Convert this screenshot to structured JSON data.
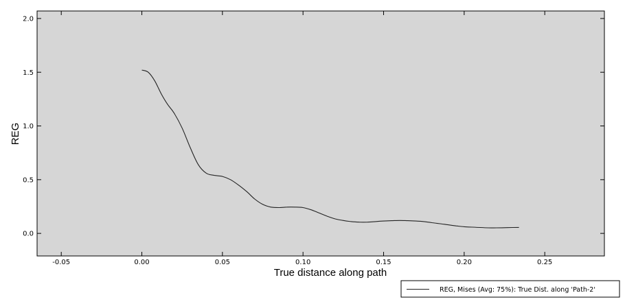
{
  "chart_data": {
    "type": "line",
    "xlabel": "True distance along path",
    "ylabel": "REG",
    "xlim": [
      -0.065,
      0.287
    ],
    "ylim": [
      -0.21,
      2.07
    ],
    "x_ticks": [
      -0.05,
      0.0,
      0.05,
      0.1,
      0.15,
      0.2,
      0.25
    ],
    "x_tick_labels": [
      "-0.05",
      "0.00",
      "0.05",
      "0.10",
      "0.15",
      "0.20",
      "0.25"
    ],
    "y_ticks": [
      0.0,
      0.5,
      1.0,
      1.5,
      2.0
    ],
    "y_tick_labels": [
      "0.0",
      "0.5",
      "1.0",
      "1.5",
      "2.0"
    ],
    "grid": false,
    "legend_position": "bottom-right",
    "background_color": "#d6d6d6",
    "line_color": "#222222",
    "series": [
      {
        "name": "REG, Mises (Avg: 75%): True Dist. along 'Path-2'",
        "x": [
          0.0,
          0.004,
          0.008,
          0.012,
          0.016,
          0.02,
          0.025,
          0.03,
          0.035,
          0.04,
          0.045,
          0.05,
          0.055,
          0.06,
          0.065,
          0.07,
          0.075,
          0.08,
          0.085,
          0.09,
          0.095,
          0.1,
          0.105,
          0.11,
          0.115,
          0.12,
          0.125,
          0.13,
          0.135,
          0.14,
          0.145,
          0.15,
          0.155,
          0.16,
          0.165,
          0.17,
          0.175,
          0.18,
          0.185,
          0.19,
          0.195,
          0.2,
          0.205,
          0.21,
          0.215,
          0.22,
          0.225,
          0.23,
          0.234
        ],
        "y": [
          1.52,
          1.5,
          1.42,
          1.3,
          1.2,
          1.12,
          0.98,
          0.8,
          0.64,
          0.56,
          0.54,
          0.53,
          0.5,
          0.45,
          0.39,
          0.32,
          0.27,
          0.245,
          0.24,
          0.245,
          0.245,
          0.24,
          0.22,
          0.19,
          0.16,
          0.135,
          0.12,
          0.11,
          0.105,
          0.105,
          0.11,
          0.115,
          0.118,
          0.12,
          0.118,
          0.115,
          0.11,
          0.1,
          0.09,
          0.08,
          0.07,
          0.062,
          0.058,
          0.055,
          0.052,
          0.052,
          0.053,
          0.055,
          0.056
        ]
      }
    ]
  }
}
